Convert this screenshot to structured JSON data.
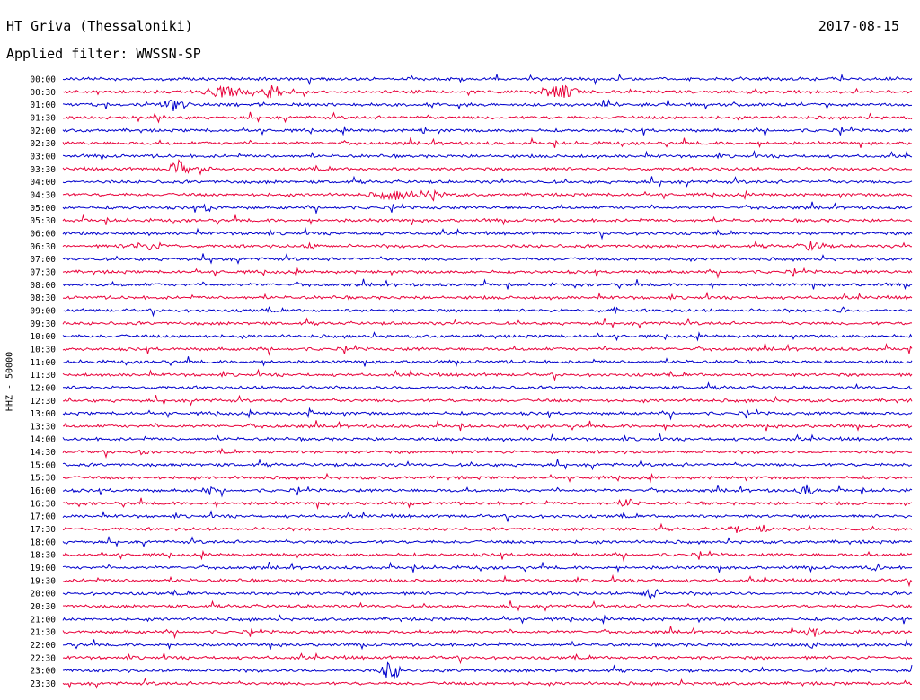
{
  "header": {
    "station": "HT Griva (Thessaloniki)",
    "date": "2017-08-15",
    "filter": "Applied filter: WWSSN-SP"
  },
  "chart_data": {
    "type": "line",
    "title": "HT Griva (Thessaloniki)",
    "ylabel": "HHZ - 50000",
    "grid": false,
    "colors": {
      "even_rows": "#0000cc",
      "odd_rows": "#e8003a"
    },
    "rows": [
      "00:00",
      "00:30",
      "01:00",
      "01:30",
      "02:00",
      "02:30",
      "03:00",
      "03:30",
      "04:00",
      "04:30",
      "05:00",
      "05:30",
      "06:00",
      "06:30",
      "07:00",
      "07:30",
      "08:00",
      "08:30",
      "09:00",
      "09:30",
      "10:00",
      "10:30",
      "11:00",
      "11:30",
      "12:00",
      "12:30",
      "13:00",
      "13:30",
      "14:00",
      "14:30",
      "15:00",
      "15:30",
      "16:00",
      "16:30",
      "17:00",
      "17:30",
      "18:00",
      "18:30",
      "19:00",
      "19:30",
      "20:00",
      "20:30",
      "21:00",
      "21:30",
      "22:00",
      "22:30",
      "23:00",
      "23:30"
    ]
  }
}
